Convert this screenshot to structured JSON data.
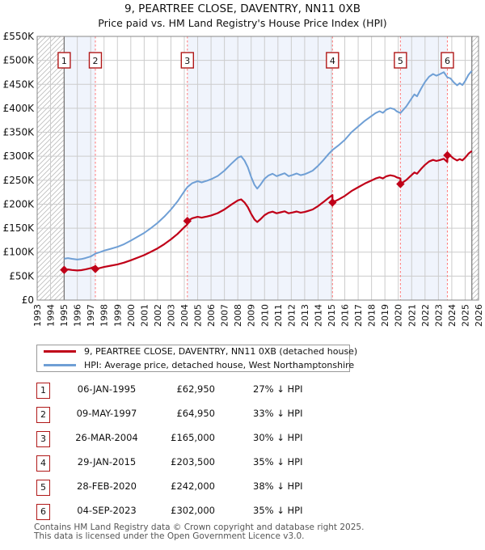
{
  "chart": {
    "title": "9, PEARTREE CLOSE, DAVENTRY, NN11 0XB",
    "subtitle": "Price paid vs. HM Land Registry's House Price Index (HPI)"
  },
  "chart_data": {
    "type": "line",
    "title": "9, PEARTREE CLOSE, DAVENTRY, NN11 0XB",
    "subtitle": "Price paid vs. HM Land Registry's House Price Index (HPI)",
    "x_axis": {
      "min": 1993,
      "max": 2026,
      "tick_interval_years": 1,
      "tick_labels": [
        "1993",
        "1994",
        "1995",
        "1996",
        "1997",
        "1998",
        "1999",
        "2000",
        "2001",
        "2002",
        "2003",
        "2004",
        "2005",
        "2006",
        "2007",
        "2008",
        "2009",
        "2010",
        "2011",
        "2012",
        "2013",
        "2014",
        "2015",
        "2016",
        "2017",
        "2018",
        "2019",
        "2020",
        "2021",
        "2022",
        "2023",
        "2024",
        "2025",
        "2026"
      ]
    },
    "y_axis": {
      "min": 0,
      "max": 550000,
      "tick_step": 50000,
      "tick_labels": [
        "£0",
        "£50K",
        "£100K",
        "£150K",
        "£200K",
        "£250K",
        "£300K",
        "£350K",
        "£400K",
        "£450K",
        "£500K",
        "£550K"
      ]
    },
    "grid": true,
    "legend_position": "below",
    "data_start": 1995.02,
    "data_end": 2025.5,
    "shaded_sale_spans": [
      [
        0,
        1
      ],
      [
        2,
        3
      ],
      [
        4,
        5
      ]
    ],
    "colors": {
      "property_line": "#c00018",
      "hpi_line": "#6f9fd5",
      "sale_dash_line": "#ff7777",
      "band_fill": "#f0f4fc",
      "gridline": "#cccccc",
      "hatch_line": "#bbbbbb",
      "plot_border": "#888888",
      "badge_border": "#b01818"
    },
    "series": [
      {
        "name": "9, PEARTREE CLOSE, DAVENTRY, NN11 0XB (detached house)",
        "color": "#c00018",
        "description": "price paid, scaled between sales by HPI ratio of previous sale"
      },
      {
        "name": "HPI: Average price, detached house, West Northamptonshire",
        "color": "#6f9fd5"
      }
    ],
    "hpi_points": [
      [
        1995.02,
        86200
      ],
      [
        1995.3,
        87500
      ],
      [
        1995.6,
        86000
      ],
      [
        1996.0,
        84500
      ],
      [
        1996.3,
        85500
      ],
      [
        1996.6,
        87500
      ],
      [
        1997.0,
        91000
      ],
      [
        1997.35,
        96900
      ],
      [
        1997.7,
        100000
      ],
      [
        1998.0,
        103000
      ],
      [
        1998.5,
        107000
      ],
      [
        1999.0,
        111000
      ],
      [
        1999.5,
        116500
      ],
      [
        2000.0,
        124000
      ],
      [
        2000.5,
        132000
      ],
      [
        2001.0,
        140000
      ],
      [
        2001.5,
        150000
      ],
      [
        2002.0,
        161000
      ],
      [
        2002.5,
        174000
      ],
      [
        2003.0,
        189000
      ],
      [
        2003.5,
        206000
      ],
      [
        2004.0,
        227000
      ],
      [
        2004.23,
        235700
      ],
      [
        2004.6,
        244000
      ],
      [
        2005.0,
        248000
      ],
      [
        2005.3,
        245500
      ],
      [
        2005.7,
        249000
      ],
      [
        2006.0,
        252000
      ],
      [
        2006.5,
        259000
      ],
      [
        2007.0,
        270000
      ],
      [
        2007.5,
        284000
      ],
      [
        2008.0,
        297000
      ],
      [
        2008.25,
        300000
      ],
      [
        2008.5,
        291000
      ],
      [
        2008.75,
        277000
      ],
      [
        2009.0,
        257000
      ],
      [
        2009.25,
        240000
      ],
      [
        2009.45,
        232500
      ],
      [
        2009.7,
        241000
      ],
      [
        2010.0,
        253000
      ],
      [
        2010.3,
        260000
      ],
      [
        2010.6,
        263500
      ],
      [
        2010.9,
        258500
      ],
      [
        2011.2,
        261500
      ],
      [
        2011.5,
        264500
      ],
      [
        2011.8,
        258500
      ],
      [
        2012.1,
        261000
      ],
      [
        2012.4,
        264000
      ],
      [
        2012.7,
        260500
      ],
      [
        2013.0,
        262500
      ],
      [
        2013.3,
        266000
      ],
      [
        2013.6,
        270000
      ],
      [
        2014.0,
        280000
      ],
      [
        2014.4,
        292000
      ],
      [
        2014.8,
        305000
      ],
      [
        2015.08,
        313100
      ],
      [
        2015.5,
        322000
      ],
      [
        2016.0,
        334000
      ],
      [
        2016.5,
        350000
      ],
      [
        2017.0,
        362000
      ],
      [
        2017.5,
        374000
      ],
      [
        2018.0,
        384000
      ],
      [
        2018.3,
        390000
      ],
      [
        2018.6,
        394000
      ],
      [
        2018.85,
        390500
      ],
      [
        2019.1,
        397000
      ],
      [
        2019.4,
        400500
      ],
      [
        2019.7,
        398000
      ],
      [
        2019.9,
        393500
      ],
      [
        2020.16,
        390300
      ],
      [
        2020.6,
        404000
      ],
      [
        2021.0,
        421000
      ],
      [
        2021.2,
        429000
      ],
      [
        2021.4,
        425000
      ],
      [
        2021.7,
        441000
      ],
      [
        2022.0,
        455000
      ],
      [
        2022.3,
        466000
      ],
      [
        2022.6,
        471500
      ],
      [
        2022.85,
        468000
      ],
      [
        2023.1,
        471000
      ],
      [
        2023.4,
        475500
      ],
      [
        2023.67,
        464600
      ],
      [
        2023.9,
        462500
      ],
      [
        2024.15,
        454000
      ],
      [
        2024.4,
        448000
      ],
      [
        2024.6,
        452500
      ],
      [
        2024.8,
        448500
      ],
      [
        2025.0,
        457000
      ],
      [
        2025.25,
        470000
      ],
      [
        2025.5,
        478000
      ]
    ]
  },
  "sales": [
    {
      "num": "1",
      "date": "06-JAN-1995",
      "price": "£62,950",
      "price_value": 62950,
      "pct_label": "27% ↓ HPI",
      "pct_below": 27,
      "year": 1995.02
    },
    {
      "num": "2",
      "date": "09-MAY-1997",
      "price": "£64,950",
      "price_value": 64950,
      "pct_label": "33% ↓ HPI",
      "pct_below": 33,
      "year": 1997.35
    },
    {
      "num": "3",
      "date": "26-MAR-2004",
      "price": "£165,000",
      "price_value": 165000,
      "pct_label": "30% ↓ HPI",
      "pct_below": 30,
      "year": 2004.23
    },
    {
      "num": "4",
      "date": "29-JAN-2015",
      "price": "£203,500",
      "price_value": 203500,
      "pct_label": "35% ↓ HPI",
      "pct_below": 35,
      "year": 2015.08
    },
    {
      "num": "5",
      "date": "28-FEB-2020",
      "price": "£242,000",
      "price_value": 242000,
      "pct_label": "38% ↓ HPI",
      "pct_below": 38,
      "year": 2020.16
    },
    {
      "num": "6",
      "date": "04-SEP-2023",
      "price": "£302,000",
      "price_value": 302000,
      "pct_label": "35% ↓ HPI",
      "pct_below": 35,
      "year": 2023.67
    }
  ],
  "legend": {
    "items": [
      {
        "label": "9, PEARTREE CLOSE, DAVENTRY, NN11 0XB (detached house)",
        "color": "#c00018"
      },
      {
        "label": "HPI: Average price, detached house, West Northamptonshire",
        "color": "#6f9fd5"
      }
    ]
  },
  "footer": {
    "line1": "Contains HM Land Registry data © Crown copyright and database right 2025.",
    "line2": "This data is licensed under the Open Government Licence v3.0."
  }
}
